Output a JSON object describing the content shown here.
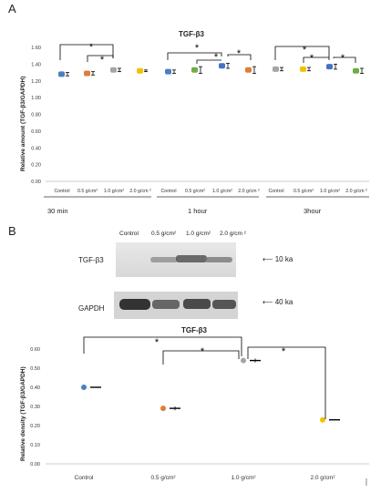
{
  "panel_a": {
    "letter": "A",
    "group_labels": [
      "30 min",
      "1 hour",
      "3hour"
    ],
    "x_labels": [
      "Control",
      "0.5 g/cm²",
      "1.0 g/cm²",
      "2.0 g/cm ²",
      "Control",
      "0.5 g/cm²",
      "1.0 g/cm²",
      "2.0 g/cm ²",
      "Control",
      "0.5 g/cm²",
      "1.0 g/cm²",
      "2.0 g/cm ²"
    ],
    "significance_marker": "*"
  },
  "panel_b": {
    "letter": "B",
    "blot": {
      "lanes": [
        "Control",
        "0.5 g/cm²",
        "1.0 g/cm²",
        "2.0 g/cm ²"
      ],
      "rows": [
        {
          "label": "TGF-β3",
          "size": "10 ka"
        },
        {
          "label": "GAPDH",
          "size": "40 ka"
        }
      ]
    },
    "significance_marker": "*"
  },
  "colors": {
    "control": "#4a7fc0",
    "c05": "#e07b39",
    "c10": "#a5a5a5",
    "c20": "#f2c200",
    "h1_10": "#4472c4",
    "h3_20": "#70ad47"
  },
  "chart_data": [
    {
      "type": "scatter",
      "title": "TGF-β3",
      "ylabel": "Relative amount (TGF-β3/GAPDH)",
      "ylim": [
        0,
        1.6
      ],
      "yticks": [
        "0.00",
        "0.20",
        "0.40",
        "0.60",
        "0.80",
        "1.00",
        "1.20",
        "1.40",
        "1.60"
      ],
      "categories": [
        "Control",
        "0.5 g/cm²",
        "1.0 g/cm²",
        "2.0 g/cm ²",
        "Control",
        "0.5 g/cm²",
        "1.0 g/cm²",
        "2.0 g/cm ²",
        "Control",
        "0.5 g/cm²",
        "1.0 g/cm²",
        "2.0 g/cm ²"
      ],
      "values": [
        1.28,
        1.29,
        1.33,
        1.32,
        1.31,
        1.33,
        1.38,
        1.33,
        1.34,
        1.34,
        1.37,
        1.32
      ],
      "errors": [
        0.02,
        0.02,
        0.02,
        0.01,
        0.02,
        0.04,
        0.03,
        0.04,
        0.02,
        0.02,
        0.03,
        0.03
      ],
      "colors": [
        "#4a7fc0",
        "#e07b39",
        "#a5a5a5",
        "#f2c200",
        "#4a7fc0",
        "#70ad47",
        "#4472c4",
        "#e07b39",
        "#a5a5a5",
        "#f2c200",
        "#4472c4",
        "#70ad47"
      ]
    },
    {
      "type": "scatter",
      "title": "TGF-β3",
      "ylabel": "Relative density (TGF-β3/GAPDH)",
      "ylim": [
        0,
        0.6
      ],
      "yticks": [
        "0.00",
        "0.10",
        "0.20",
        "0.30",
        "0.40",
        "0.50",
        "0.60"
      ],
      "categories": [
        "Control",
        "0.5 g/cm²",
        "1.0 g/cm²",
        "2.0 g/cm²"
      ],
      "values": [
        0.4,
        0.29,
        0.54,
        0.23
      ],
      "errors": [
        0.0,
        0.01,
        0.01,
        0.0
      ],
      "colors": [
        "#4a7fc0",
        "#e07b39",
        "#a5a5a5",
        "#f2c200"
      ]
    }
  ]
}
